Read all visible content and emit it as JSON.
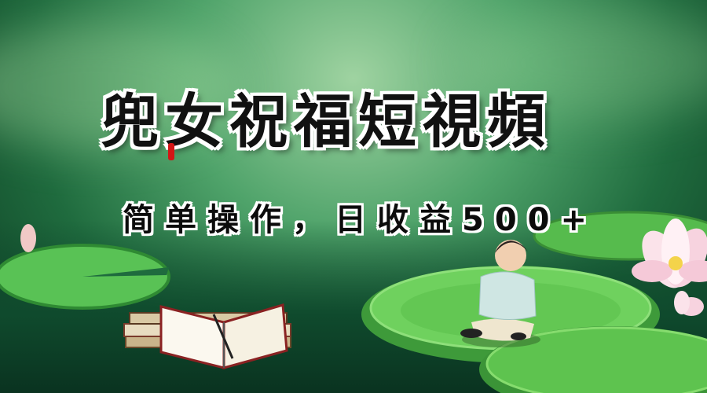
{
  "banner": {
    "title": "兜女祝福短視頻",
    "subtitle": "简单操作，日收益500+"
  },
  "icons": [
    "lotus-flower-icon",
    "lily-pad-icon",
    "open-book-icon",
    "child-figure-icon"
  ],
  "colors": {
    "accent": "#d41616",
    "lily_pad": "#4fbf4a",
    "water": "#0f4a2d"
  }
}
